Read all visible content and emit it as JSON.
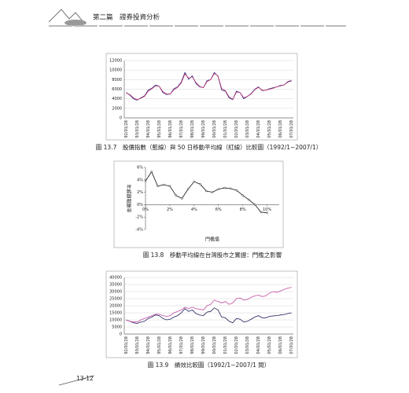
{
  "header": {
    "title": "第二篇　證券投資分析"
  },
  "page_number": "13-12",
  "chart_data": [
    {
      "type": "line",
      "caption": "圖 13.7　股價指數（藍線）與 50 日移動平均線（紅線）比較圖（1992/1~2007/1）",
      "categories": [
        "92/01/28",
        null,
        null,
        "93/01/28",
        null,
        null,
        "94/01/28",
        null,
        null,
        "95/01/28",
        null,
        null,
        "96/01/28",
        null,
        null,
        "97/01/28",
        null,
        null,
        "98/01/28",
        null,
        null,
        "99/01/28",
        null,
        null,
        "00/01/28",
        null,
        null,
        "01/01/28",
        null,
        null,
        "02/01/28",
        null,
        null,
        "03/01/28",
        null,
        null,
        "04/01/28",
        null,
        null,
        "05/01/28",
        null,
        null,
        "06/01/28",
        null,
        null,
        "07/01/28"
      ],
      "series": [
        {
          "color": "#2b2b8f",
          "values": [
            5300,
            4800,
            4000,
            3700,
            4200,
            4600,
            5800,
            6200,
            6900,
            6600,
            5300,
            4900,
            5000,
            6100,
            6500,
            7500,
            9500,
            8100,
            8800,
            7200,
            6500,
            6300,
            7800,
            8000,
            9500,
            8700,
            5800,
            5600,
            4200,
            3800,
            5600,
            5300,
            4000,
            4500,
            5100,
            6000,
            6500,
            5700,
            5800,
            6100,
            6300,
            6500,
            6800,
            6900,
            7600,
            7800
          ]
        },
        {
          "color": "#c0306a",
          "values": [
            5200,
            4900,
            4200,
            3800,
            4100,
            4500,
            5600,
            6100,
            6700,
            6600,
            5500,
            5000,
            5000,
            5900,
            6400,
            7300,
            9200,
            8300,
            8600,
            7400,
            6600,
            6300,
            7600,
            8000,
            9300,
            8800,
            6100,
            5700,
            4400,
            3900,
            5400,
            5300,
            4200,
            4500,
            5000,
            5900,
            6400,
            5800,
            5800,
            6000,
            6200,
            6500,
            6700,
            6900,
            7500,
            7700
          ]
        }
      ],
      "ylim": [
        0,
        12000
      ],
      "yticks": [
        0,
        2000,
        4000,
        6000,
        8000,
        10000,
        12000
      ],
      "grid": true
    },
    {
      "type": "line",
      "caption": "圖 13.8　移動平均線在台灣股市之實證：門檻之影響",
      "xlabel": "門檻值",
      "ylabel": "年超額報酬率",
      "x": [
        0,
        0.5,
        1,
        1.5,
        2,
        2.5,
        3,
        3.5,
        4,
        4.5,
        5,
        5.5,
        6,
        6.5,
        7,
        7.5,
        8,
        8.5,
        9,
        9.5,
        10
      ],
      "series": [
        {
          "color": "#111111",
          "marker": true,
          "values": [
            3.8,
            5.3,
            3.0,
            3.2,
            3.0,
            1.5,
            1.0,
            2.5,
            3.7,
            3.3,
            2.2,
            2.0,
            2.5,
            2.7,
            2.6,
            2.3,
            1.5,
            0.8,
            0.0,
            -1.2,
            -1.3
          ]
        }
      ],
      "xlim": [
        0,
        11
      ],
      "xticks": [
        {
          "value": 0,
          "label": "0%"
        },
        {
          "value": 2,
          "label": "2%"
        },
        {
          "value": 4,
          "label": "4%"
        },
        {
          "value": 6,
          "label": "6%"
        },
        {
          "value": 8,
          "label": "8%"
        },
        {
          "value": 10,
          "label": "10%"
        }
      ],
      "ylim": [
        -4,
        6
      ],
      "yticks": [
        {
          "value": -4,
          "label": "-4%"
        },
        {
          "value": -2,
          "label": "-2%"
        },
        {
          "value": 0,
          "label": "0%"
        },
        {
          "value": 2,
          "label": "2%"
        },
        {
          "value": 4,
          "label": "4%"
        },
        {
          "value": 6,
          "label": "6%"
        }
      ],
      "grid": false
    },
    {
      "type": "line",
      "caption": "圖 13.9　績效比較圖（1992/1~2007/1 間）",
      "categories": [
        "92/01/28",
        null,
        null,
        "93/01/28",
        null,
        null,
        "94/01/28",
        null,
        null,
        "95/01/28",
        null,
        null,
        "96/01/28",
        null,
        null,
        "97/01/28",
        null,
        null,
        "98/01/28",
        null,
        null,
        "99/01/28",
        null,
        null,
        "00/01/28",
        null,
        null,
        "01/01/28",
        null,
        null,
        "02/01/28",
        null,
        null,
        "03/01/28",
        null,
        null,
        "04/01/28",
        null,
        null,
        "05/01/28",
        null,
        null,
        "06/01/28",
        null,
        null,
        "07/01/28"
      ],
      "series": [
        {
          "color": "#1f1f5f",
          "values": [
            10000,
            9000,
            8000,
            7500,
            8500,
            9000,
            11000,
            12000,
            13500,
            13000,
            11000,
            10000,
            10500,
            12000,
            13000,
            15000,
            18000,
            16000,
            17000,
            14500,
            13500,
            13000,
            15500,
            16000,
            18500,
            17000,
            12000,
            11500,
            9000,
            8000,
            11000,
            10500,
            8500,
            9000,
            10500,
            12000,
            13000,
            11500,
            11500,
            12500,
            12800,
            13000,
            13500,
            13800,
            14500,
            15000
          ]
        },
        {
          "color": "#c04aa0",
          "values": [
            10000,
            9000,
            8500,
            8500,
            10000,
            11000,
            12000,
            13000,
            14000,
            14000,
            13000,
            12500,
            13000,
            15000,
            16000,
            17000,
            19000,
            18000,
            19000,
            18000,
            17500,
            17000,
            20000,
            21000,
            24000,
            23000,
            22000,
            23000,
            21000,
            22000,
            25000,
            25500,
            24000,
            24500,
            26000,
            27000,
            27500,
            26500,
            27000,
            29000,
            30000,
            29500,
            30500,
            31500,
            32500,
            33000
          ]
        }
      ],
      "ylim": [
        0,
        40000
      ],
      "yticks": [
        0,
        5000,
        10000,
        15000,
        20000,
        25000,
        30000,
        35000,
        40000
      ],
      "grid": true
    }
  ]
}
